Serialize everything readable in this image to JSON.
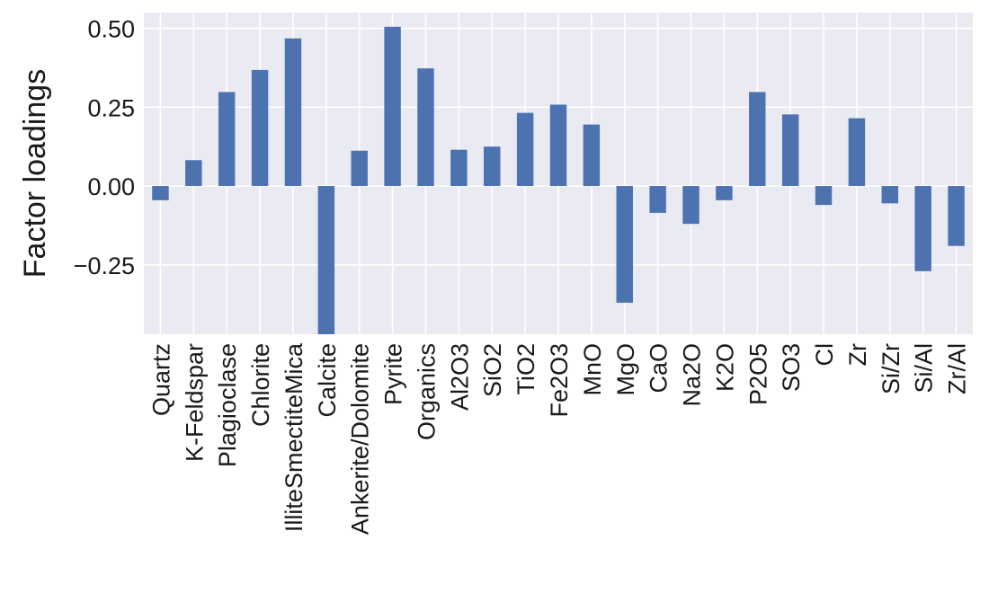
{
  "chart_data": {
    "type": "bar",
    "title": "",
    "xlabel": "",
    "ylabel": "Factor loadings",
    "ylim": [
      -0.47,
      0.55
    ],
    "yticks": [
      -0.25,
      0.0,
      0.25,
      0.5
    ],
    "ytick_labels": [
      "−0.25",
      "0.00",
      "0.25",
      "0.50"
    ],
    "grid": true,
    "legend": "none",
    "bar_color": "#4c72b0",
    "background_color": "#eaeaf2",
    "categories": [
      "Quartz",
      "K-Feldspar",
      "Plagioclase",
      "Chlorite",
      "IlliteSmectiteMica",
      "Calcite",
      "Ankerite/Dolomite",
      "Pyrite",
      "Organics",
      "Al2O3",
      "SiO2",
      "TiO2",
      "Fe2O3",
      "MnO",
      "MgO",
      "CaO",
      "Na2O",
      "K2O",
      "P2O5",
      "SO3",
      "Cl",
      "Zr",
      "Si/Zr",
      "Si/Al",
      "Zr/Al"
    ],
    "values": [
      -0.045,
      0.082,
      0.298,
      0.368,
      0.468,
      -0.48,
      0.112,
      0.505,
      0.373,
      0.115,
      0.125,
      0.232,
      0.258,
      0.195,
      -0.37,
      -0.085,
      -0.12,
      -0.045,
      0.298,
      0.227,
      -0.06,
      0.215,
      -0.055,
      -0.27,
      -0.19
    ]
  }
}
